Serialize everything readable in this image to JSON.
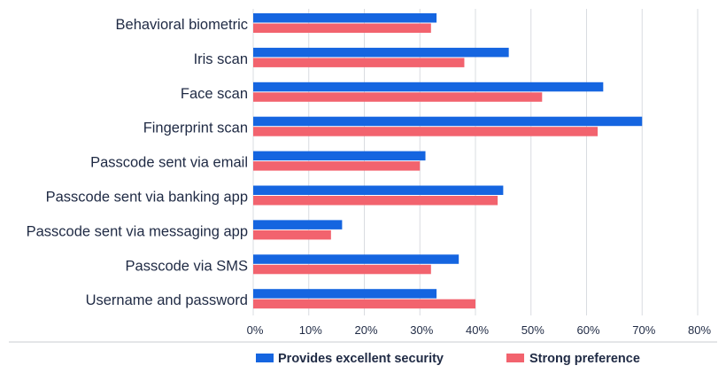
{
  "chart_data": {
    "type": "bar",
    "orientation": "horizontal",
    "categories": [
      "Behavioral biometric",
      "Iris scan",
      "Face scan",
      "Fingerprint scan",
      "Passcode sent via email",
      "Passcode sent via banking app",
      "Passcode sent via messaging app",
      "Passcode via SMS",
      "Username and password"
    ],
    "series": [
      {
        "name": "Provides excellent security",
        "color": "#1565e0",
        "values": [
          33,
          46,
          63,
          70,
          31,
          45,
          16,
          37,
          33
        ]
      },
      {
        "name": "Strong preference",
        "color": "#f2636e",
        "values": [
          32,
          38,
          52,
          62,
          30,
          44,
          14,
          32,
          40
        ]
      }
    ],
    "xlim": [
      0,
      80
    ],
    "xticks": [
      0,
      10,
      20,
      30,
      40,
      50,
      60,
      70,
      80
    ],
    "tick_labels": [
      "0%",
      "10%",
      "20%",
      "30%",
      "40%",
      "50%",
      "60%",
      "70%",
      "80%"
    ],
    "grid": true,
    "legend": "bottom"
  }
}
